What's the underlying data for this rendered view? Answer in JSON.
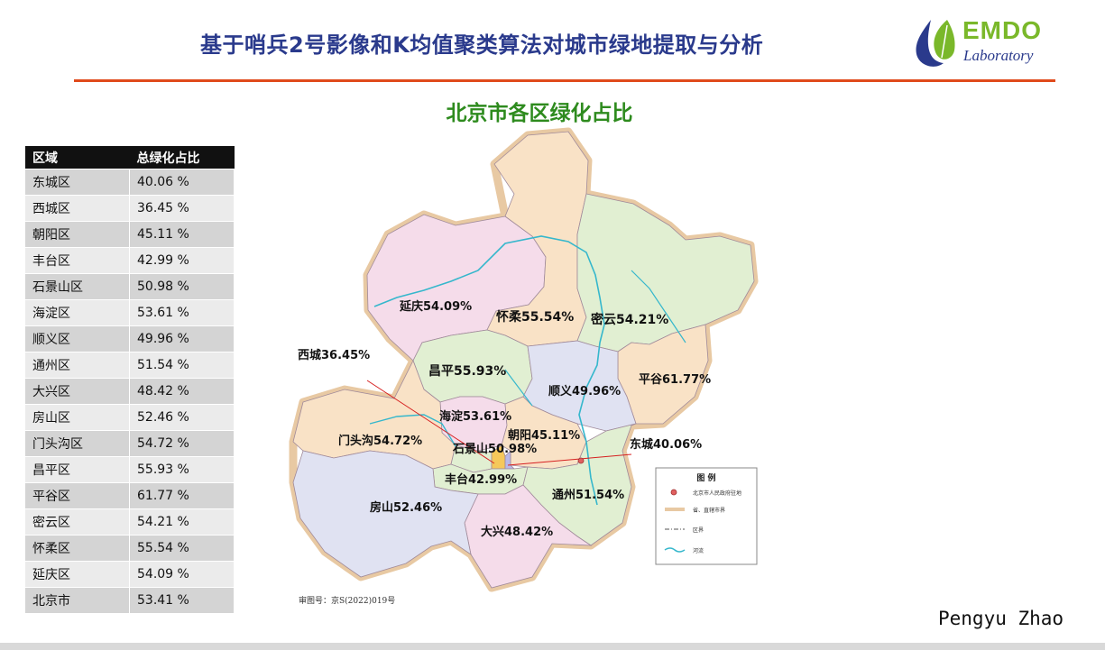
{
  "header": {
    "title": "基于哨兵2号影像和K均值聚类算法对城市绿地提取与分析",
    "logo_text": "EMDO",
    "logo_sub": "Laboratory",
    "accent_color": "#e04a1b",
    "title_color": "#2a3a8c"
  },
  "table": {
    "headers": [
      "区域",
      "总绿化占比"
    ],
    "rows": [
      [
        "东城区",
        "40.06 %"
      ],
      [
        "西城区",
        "36.45 %"
      ],
      [
        "朝阳区",
        "45.11 %"
      ],
      [
        "丰台区",
        "42.99 %"
      ],
      [
        "石景山区",
        "50.98 %"
      ],
      [
        "海淀区",
        "53.61 %"
      ],
      [
        "顺义区",
        "49.96 %"
      ],
      [
        "通州区",
        "51.54 %"
      ],
      [
        "大兴区",
        "48.42 %"
      ],
      [
        "房山区",
        "52.46 %"
      ],
      [
        "门头沟区",
        "54.72 %"
      ],
      [
        "昌平区",
        "55.93 %"
      ],
      [
        "平谷区",
        "61.77 %"
      ],
      [
        "密云区",
        "54.21 %"
      ],
      [
        "怀柔区",
        "55.54 %"
      ],
      [
        "延庆区",
        "54.09 %"
      ],
      [
        "北京市",
        "53.41 %"
      ]
    ]
  },
  "map": {
    "title": "北京市各区绿化占比",
    "title_color": "#2e8b1e",
    "district_labels": {
      "yanqing": "延庆54.09%",
      "huairou": "怀柔55.54%",
      "miyun": "密云54.21%",
      "changping": "昌平55.93%",
      "shunyi": "顺义49.96%",
      "pinggu": "平谷61.77%",
      "haidian": "海淀53.61%",
      "chaoyang": "朝阳45.11%",
      "mentougou": "门头沟54.72%",
      "shijingshan": "石景山50.98%",
      "fengtai": "丰台42.99%",
      "tongzhou": "通州51.54%",
      "fangshan": "房山52.46%",
      "daxing": "大兴48.42%",
      "xicheng": "西城36.45%",
      "dongcheng": "东城40.06%"
    },
    "legend": {
      "title": "图 例",
      "items": [
        "北京市人民政府驻地",
        "省、直辖市界",
        "区界",
        "河流"
      ]
    },
    "approval": "审图号：京S(2022)019号",
    "colors": {
      "pink": "#f5dcea",
      "peach": "#f9e2c6",
      "green": "#e1efd2",
      "lavender": "#e0e2f2",
      "border": "#d7a877",
      "river": "#35b7cc",
      "leader": "#d62020"
    }
  },
  "footer": {
    "author": "Pengyu Zhao"
  }
}
